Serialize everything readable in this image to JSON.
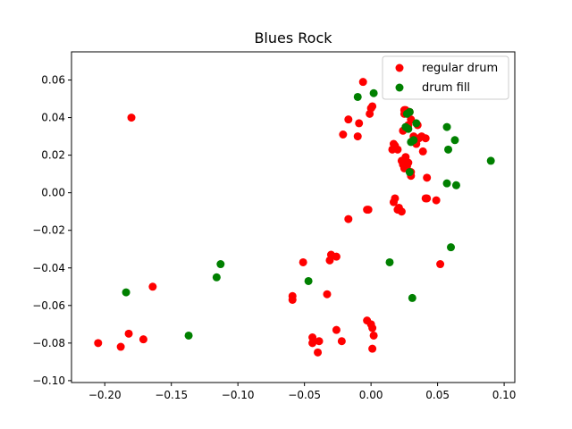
{
  "chart_data": {
    "type": "scatter",
    "title": "Blues Rock",
    "xlabel": "",
    "ylabel": "",
    "xlim": [
      -0.225,
      0.108
    ],
    "ylim": [
      -0.101,
      0.075
    ],
    "xticks": [
      -0.2,
      -0.15,
      -0.1,
      -0.05,
      0.0,
      0.05,
      0.1
    ],
    "xtick_labels": [
      "−0.20",
      "−0.15",
      "−0.10",
      "−0.05",
      "0.00",
      "0.05",
      "0.10"
    ],
    "yticks": [
      -0.1,
      -0.08,
      -0.06,
      -0.04,
      -0.02,
      0.0,
      0.02,
      0.04,
      0.06
    ],
    "ytick_labels": [
      "−0.10",
      "−0.08",
      "−0.06",
      "−0.04",
      "−0.02",
      "0.00",
      "0.02",
      "0.04",
      "0.06"
    ],
    "grid": false,
    "legend_position": "top-right",
    "series": [
      {
        "name": "regular drum",
        "color": "#ff0000",
        "points": [
          [
            -0.18,
            0.04
          ],
          [
            -0.205,
            -0.08
          ],
          [
            -0.188,
            -0.082
          ],
          [
            -0.182,
            -0.075
          ],
          [
            -0.171,
            -0.078
          ],
          [
            -0.164,
            -0.05
          ],
          [
            -0.059,
            -0.057
          ],
          [
            -0.059,
            -0.055
          ],
          [
            -0.051,
            -0.037
          ],
          [
            -0.044,
            -0.08
          ],
          [
            -0.044,
            -0.077
          ],
          [
            -0.04,
            -0.085
          ],
          [
            -0.039,
            -0.079
          ],
          [
            -0.033,
            -0.054
          ],
          [
            -0.031,
            -0.036
          ],
          [
            -0.03,
            -0.033
          ],
          [
            -0.026,
            -0.034
          ],
          [
            -0.026,
            -0.073
          ],
          [
            -0.022,
            -0.079
          ],
          [
            -0.021,
            0.031
          ],
          [
            -0.017,
            0.039
          ],
          [
            -0.017,
            -0.014
          ],
          [
            -0.01,
            0.03
          ],
          [
            -0.009,
            0.037
          ],
          [
            -0.006,
            0.059
          ],
          [
            -0.003,
            -0.068
          ],
          [
            -0.003,
            -0.009
          ],
          [
            -0.002,
            -0.009
          ],
          [
            -0.001,
            0.042
          ],
          [
            0.0,
            0.045
          ],
          [
            0.001,
            0.046
          ],
          [
            0.0,
            -0.07
          ],
          [
            0.001,
            -0.072
          ],
          [
            0.002,
            -0.076
          ],
          [
            0.001,
            -0.083
          ],
          [
            0.016,
            0.023
          ],
          [
            0.017,
            0.026
          ],
          [
            0.018,
            0.025
          ],
          [
            0.018,
            -0.003
          ],
          [
            0.017,
            -0.005
          ],
          [
            0.02,
            0.023
          ],
          [
            0.02,
            -0.009
          ],
          [
            0.021,
            -0.008
          ],
          [
            0.023,
            -0.01
          ],
          [
            0.023,
            0.017
          ],
          [
            0.024,
            0.033
          ],
          [
            0.024,
            0.015
          ],
          [
            0.025,
            0.013
          ],
          [
            0.025,
            0.042
          ],
          [
            0.025,
            0.044
          ],
          [
            0.026,
            0.044
          ],
          [
            0.026,
            0.019
          ],
          [
            0.027,
            0.014
          ],
          [
            0.028,
            0.016
          ],
          [
            0.028,
            0.036
          ],
          [
            0.029,
            0.043
          ],
          [
            0.03,
            0.009
          ],
          [
            0.03,
            0.011
          ],
          [
            0.03,
            0.039
          ],
          [
            0.032,
            0.029
          ],
          [
            0.032,
            0.03
          ],
          [
            0.034,
            0.026
          ],
          [
            0.035,
            0.036
          ],
          [
            0.036,
            0.029
          ],
          [
            0.038,
            0.03
          ],
          [
            0.039,
            0.022
          ],
          [
            0.041,
            0.029
          ],
          [
            0.041,
            -0.003
          ],
          [
            0.042,
            0.008
          ],
          [
            0.042,
            -0.003
          ],
          [
            0.049,
            -0.004
          ],
          [
            0.052,
            -0.038
          ]
        ]
      },
      {
        "name": "drum fill",
        "color": "#008000",
        "points": [
          [
            -0.184,
            -0.053
          ],
          [
            -0.137,
            -0.076
          ],
          [
            -0.116,
            -0.045
          ],
          [
            -0.113,
            -0.038
          ],
          [
            -0.047,
            -0.047
          ],
          [
            -0.01,
            0.051
          ],
          [
            0.002,
            0.053
          ],
          [
            0.014,
            -0.037
          ],
          [
            0.026,
            0.035
          ],
          [
            0.027,
            0.042
          ],
          [
            0.028,
            0.034
          ],
          [
            0.029,
            0.043
          ],
          [
            0.029,
            0.011
          ],
          [
            0.03,
            0.027
          ],
          [
            0.031,
            -0.056
          ],
          [
            0.032,
            0.028
          ],
          [
            0.034,
            0.037
          ],
          [
            0.057,
            0.035
          ],
          [
            0.057,
            0.005
          ],
          [
            0.058,
            0.023
          ],
          [
            0.06,
            -0.029
          ],
          [
            0.063,
            0.028
          ],
          [
            0.064,
            0.004
          ],
          [
            0.09,
            0.017
          ]
        ]
      }
    ]
  }
}
